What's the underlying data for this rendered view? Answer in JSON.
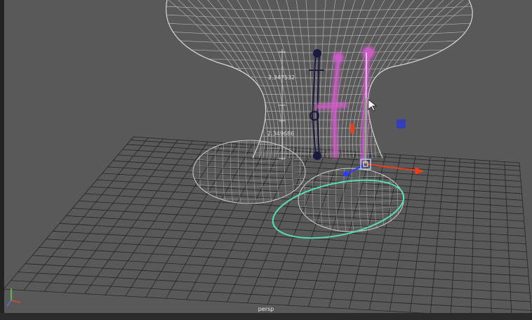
{
  "viewport": {
    "camera_label": "persp",
    "measurements": [
      "2.347532",
      "2.349686"
    ]
  },
  "axis_gizmo": {
    "x_color": "#d9473a",
    "y_color": "#6ad04a",
    "z_color": "#4a78e0"
  },
  "colors": {
    "background": "#595959",
    "wireframe": "#e6e6e6",
    "grid": "#1f1f1f",
    "nurbs_control": "#55e0b8",
    "joint_chain_dark": "#1a1a3a",
    "joint_chain_magenta": "#e060d8",
    "manip_x": "#e8401e",
    "manip_y": "#3dd43d",
    "manip_z": "#2a3cff"
  },
  "icons": [
    "move-manipulator-icon",
    "mouse-cursor-icon",
    "axis-gizmo-icon"
  ]
}
